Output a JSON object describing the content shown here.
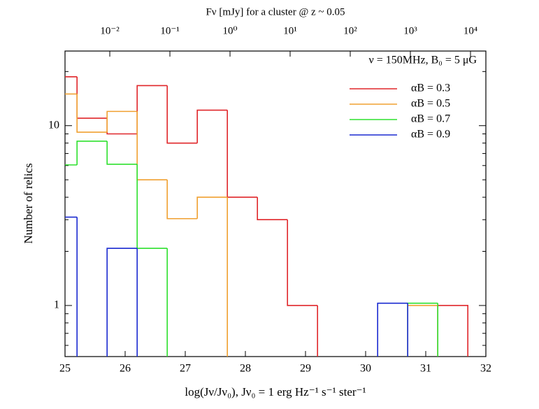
{
  "chart_data": {
    "type": "histogram",
    "x2label": "Fν [mJy] for a cluster @ z ~ 0.05",
    "xlabel": "log(Jν/Jν₀),    Jν₀ = 1 erg Hz⁻¹ s⁻¹ ster⁻¹",
    "ylabel": "Number of relics",
    "annotation": "ν = 150MHz, B₀ = 5 μG",
    "bins": [
      24.7,
      25.2,
      25.7,
      26.2,
      26.7,
      27.2,
      27.7,
      28.2,
      28.7,
      29.2,
      29.7,
      30.2,
      30.7,
      31.2,
      31.7
    ],
    "series": [
      {
        "name": "αB = 0.3",
        "color": "#e0262a",
        "values": [
          18.7,
          11,
          9,
          16.7,
          8,
          12.2,
          4,
          3,
          1,
          0,
          0,
          0,
          0,
          1
        ]
      },
      {
        "name": "αB = 0.5",
        "color": "#f0a030",
        "values": [
          15,
          9.2,
          12,
          5,
          3.04,
          4,
          0,
          0,
          0,
          0,
          0,
          0,
          1,
          0
        ]
      },
      {
        "name": "αB = 0.7",
        "color": "#2ee02e",
        "values": [
          6.05,
          8.2,
          6.1,
          2.08,
          0,
          0,
          0,
          0,
          0,
          0,
          0,
          0,
          1.03,
          0
        ]
      },
      {
        "name": "αB = 0.9",
        "color": "#1a2ad0",
        "values": [
          3.1,
          0,
          2.08,
          0,
          0,
          0,
          0,
          0,
          0,
          0,
          0,
          1.03,
          0,
          0
        ]
      }
    ],
    "xlim": [
      25,
      32
    ],
    "xticks": [
      25,
      26,
      27,
      28,
      29,
      30,
      31,
      32
    ],
    "x2lim": [
      0.0018,
      18030
    ],
    "x2scale": "log",
    "x2ticks": [
      {
        "value": 0.01,
        "label": "10⁻²"
      },
      {
        "value": 0.1,
        "label": "10⁻¹"
      },
      {
        "value": 1,
        "label": "10⁰"
      },
      {
        "value": 10,
        "label": "10¹"
      },
      {
        "value": 100,
        "label": "10²"
      },
      {
        "value": 1000,
        "label": "10³"
      },
      {
        "value": 10000,
        "label": "10⁴"
      }
    ],
    "ylim": [
      0.52,
      26
    ],
    "yscale": "log",
    "yticks": [
      1,
      10
    ],
    "yminorticks": [
      0.6,
      0.7,
      0.8,
      0.9,
      2,
      3,
      4,
      5,
      6,
      7,
      8,
      9,
      20
    ],
    "legend": "upper right"
  }
}
